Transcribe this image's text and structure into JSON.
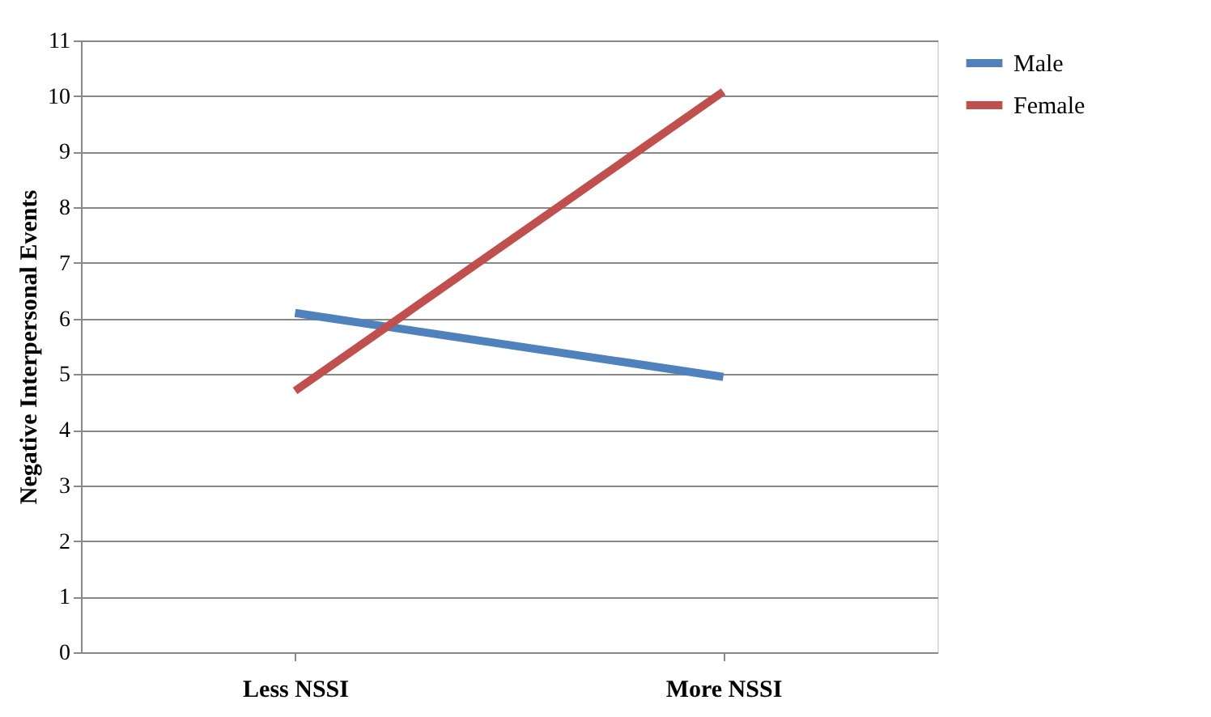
{
  "chart_data": {
    "type": "line",
    "ylabel": "Negative Interpersonal Events",
    "categories": [
      "Less NSSI",
      "More NSSI"
    ],
    "series": [
      {
        "name": "Male",
        "color": "#4f81bd",
        "values": [
          6.1,
          4.95
        ]
      },
      {
        "name": "Female",
        "color": "#c0504d",
        "values": [
          4.7,
          10.08
        ]
      }
    ],
    "ylim": [
      0,
      11
    ],
    "yticks": [
      0,
      1,
      2,
      3,
      4,
      5,
      6,
      7,
      8,
      9,
      10,
      11
    ],
    "grid": "y",
    "legend": "right",
    "marker": "none",
    "line_style": "solid"
  }
}
